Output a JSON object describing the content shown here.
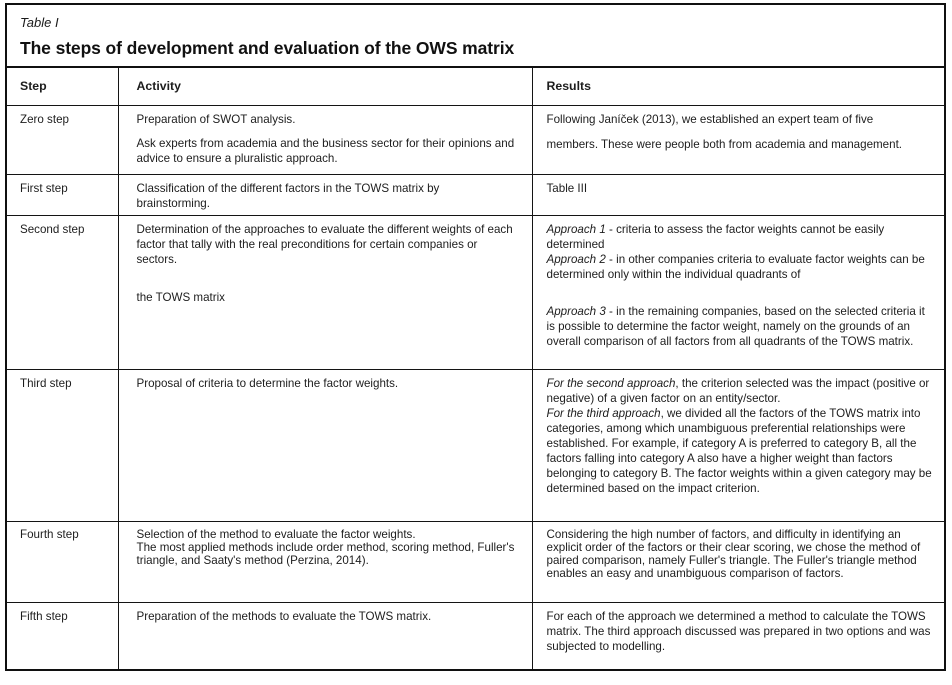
{
  "caption": {
    "label": "Table I",
    "title": "The steps of development and evaluation of the OWS matrix"
  },
  "columns": [
    "Step",
    "Activity",
    "Results"
  ],
  "rows": [
    {
      "step": "Zero step",
      "activity": {
        "p1": "Preparation of SWOT analysis.",
        "p2": "Ask experts from academia and the business sector for their opinions and advice to ensure a pluralistic approach."
      },
      "results": {
        "p1": "Following Janíček (2013), we established an expert team of five",
        "p2": "members. These were people both from academia and management."
      }
    },
    {
      "step": "First step",
      "activity": {
        "p1": "Classification of the different factors in the TOWS matrix by brainstorming."
      },
      "results": {
        "p1": "Table III"
      }
    },
    {
      "step": "Second step",
      "activity": {
        "p1": "Determination of the approaches to evaluate the different weights of each factor that tally with the real preconditions for certain companies or sectors.",
        "p2": "the TOWS matrix"
      },
      "results": {
        "p1": {
          "lead": "Approach 1",
          "text": " - criteria to assess the factor weights cannot be easily determined"
        },
        "p2": {
          "lead": "Approach 2",
          "text": " - in other companies criteria to evaluate factor weights can be determined only within the individual quadrants of"
        },
        "p3": {
          "lead": "Approach 3",
          "text": " - in the remaining companies, based on the selected criteria it is possible to determine the factor weight, namely on the grounds of an overall comparison of all factors from all quadrants of the TOWS matrix."
        }
      }
    },
    {
      "step": "Third step",
      "activity": {
        "p1": "Proposal of criteria to determine the factor weights."
      },
      "results": {
        "p1": {
          "lead": "For the second approach",
          "text": ", the criterion selected was the impact (positive or negative) of a given factor on an entity/sector."
        },
        "p2": {
          "lead": "For the third approach",
          "text": ", we divided all the factors of the TOWS matrix into categories, among which unambiguous preferential relationships were established. For example, if category A is preferred to category B, all the factors falling into category A also have a higher weight than factors belonging to category B. The factor weights within a given category may be determined based on the impact criterion."
        }
      }
    },
    {
      "step": "Fourth step",
      "activity": {
        "p1": "Selection of the method to evaluate the factor weights.",
        "p2": "The most applied methods include order method, scoring method, Fuller's triangle, and Saaty's method (Perzina, 2014)."
      },
      "results": {
        "p1": "Considering the high number of factors, and difficulty in identifying an explicit order of the factors or their clear scoring, we chose the method of paired comparison, namely Fuller's triangle. The Fuller's triangle method enables an easy and unambiguous comparison of factors."
      }
    },
    {
      "step": "Fifth step",
      "activity": {
        "p1": "Preparation of the methods to evaluate the TOWS matrix."
      },
      "results": {
        "p1": "For each of the approach we determined a method to calculate the TOWS matrix.  The third approach discussed was prepared in two options and was subjected to modelling."
      }
    }
  ]
}
